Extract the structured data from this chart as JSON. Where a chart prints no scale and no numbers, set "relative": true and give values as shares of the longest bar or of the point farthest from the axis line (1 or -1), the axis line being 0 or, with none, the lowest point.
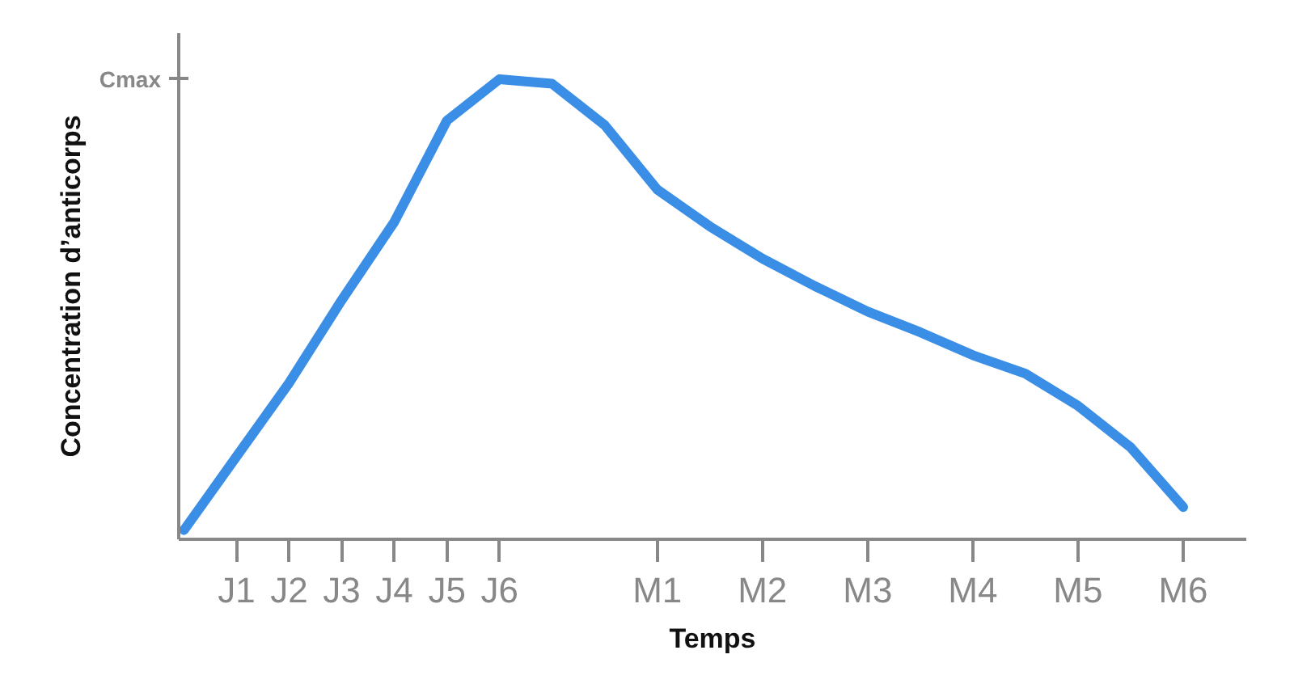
{
  "chart_data": {
    "type": "line",
    "xlabel": "Temps",
    "ylabel": "Concentration d’anticorps",
    "relative": true,
    "categories": [
      null,
      "J1",
      "J2",
      "J3",
      "J4",
      "J5",
      "J6",
      null,
      null,
      "M1",
      null,
      "M2",
      null,
      "M3",
      null,
      "M4",
      null,
      "M5",
      null,
      "M6"
    ],
    "series": [
      {
        "color": "#3a8ee6",
        "values": [
          0.02,
          0.18,
          0.34,
          0.52,
          0.69,
          0.91,
          1.0,
          0.99,
          0.9,
          0.76,
          0.68,
          0.61,
          0.55,
          0.495,
          0.45,
          0.4,
          0.36,
          0.29,
          0.2,
          0.07
        ]
      }
    ],
    "annotations": [
      "Cmax"
    ],
    "grid": false,
    "marker": "none",
    "line_style": "solid"
  }
}
